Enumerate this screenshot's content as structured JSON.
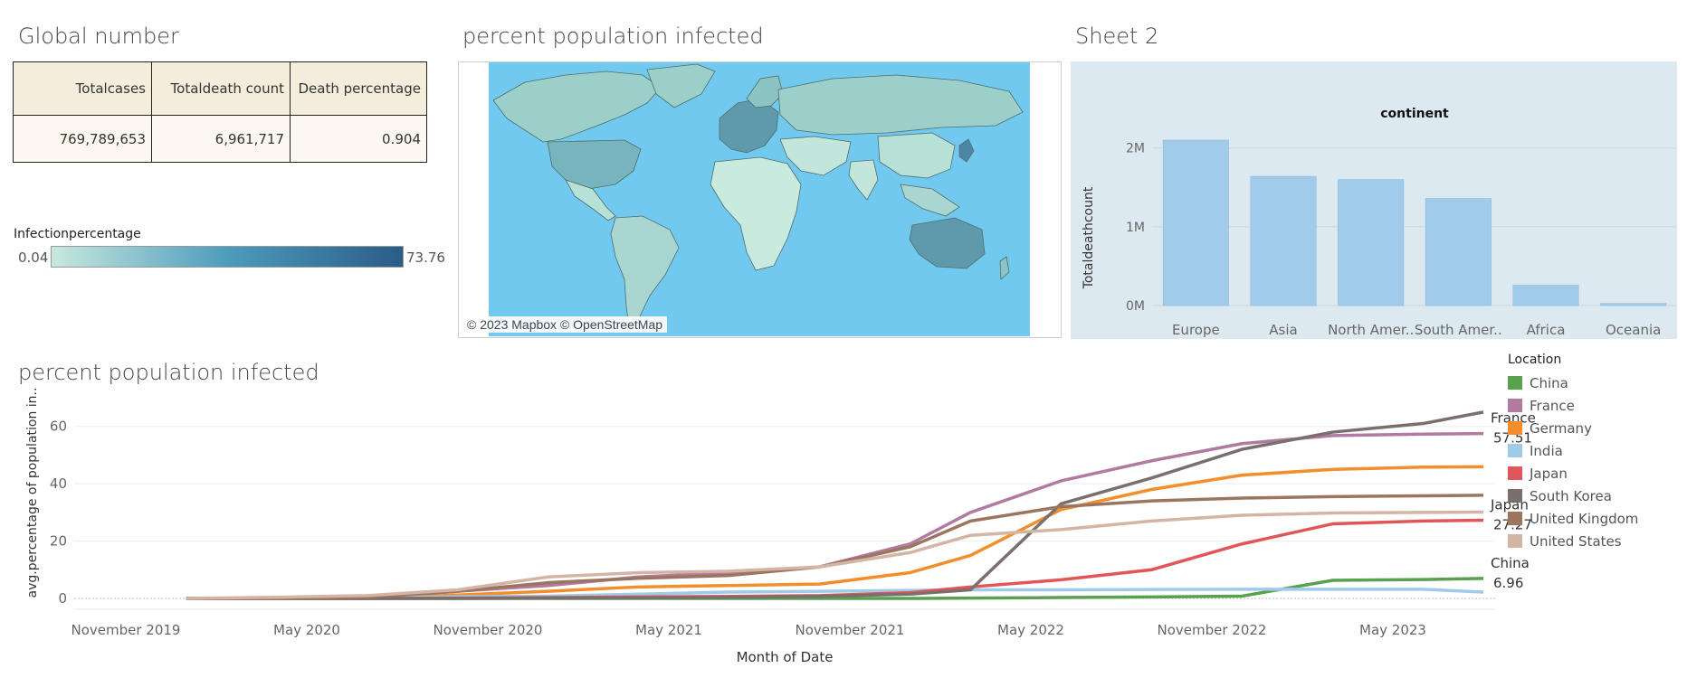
{
  "global_number": {
    "title": "Global number",
    "headers": [
      "Totalcases",
      "Totaldeath count",
      "Death percentage"
    ],
    "values": [
      "769,789,653",
      "6,961,717",
      "0.904"
    ]
  },
  "legend": {
    "title": "Infectionpercentage",
    "min": "0.04",
    "max": "73.76"
  },
  "map": {
    "title": "percent population infected",
    "attribution": "© 2023 Mapbox © OpenStreetMap",
    "ocean_color": "#72c9ef",
    "land_color": "#9ccfc9"
  },
  "sheet2": {
    "title": "Sheet 2"
  },
  "line_panel": {
    "title": "percent population infected"
  },
  "chart_data": [
    {
      "type": "bar",
      "title": "continent",
      "ylabel": "Totaldeathcount",
      "xlabel": "",
      "categories": [
        "Europe",
        "Asia",
        "North Amer..",
        "South Amer..",
        "Africa",
        "Oceania"
      ],
      "values": [
        2100000,
        1640000,
        1600000,
        1360000,
        258000,
        27000
      ],
      "yticks": [
        "0M",
        "1M",
        "2M"
      ],
      "ytick_values": [
        0,
        1000000,
        2000000
      ],
      "ylim": [
        0,
        2180000
      ],
      "bar_color": "#a0cbea",
      "grid": true
    },
    {
      "type": "line",
      "title": "percent population infected",
      "xlabel": "Month of Date",
      "ylabel": "avg.percentage of population in..",
      "x": [
        "2020-01",
        "2020-04",
        "2020-07",
        "2020-10",
        "2021-01",
        "2021-04",
        "2021-07",
        "2021-10",
        "2022-01",
        "2022-03",
        "2022-06",
        "2022-09",
        "2022-12",
        "2023-03",
        "2023-06",
        "2023-08"
      ],
      "xticks": [
        "November 2019",
        "May 2020",
        "November 2020",
        "May 2021",
        "November 2021",
        "May 2022",
        "November 2022",
        "May 2023"
      ],
      "ylim": [
        0,
        70
      ],
      "yticks": [
        0,
        20,
        40,
        60
      ],
      "legend_title": "Location",
      "legend_position": "right",
      "series": [
        {
          "name": "China",
          "color": "#59a14f",
          "values": [
            0,
            0,
            0,
            0,
            0,
            0,
            0,
            0,
            0,
            0.1,
            0.3,
            0.5,
            0.8,
            6.3,
            6.6,
            6.96
          ],
          "end_label": [
            "China",
            "6.96"
          ]
        },
        {
          "name": "France",
          "color": "#b07aa1",
          "values": [
            0,
            0,
            0.3,
            2.5,
            4.5,
            7.5,
            9,
            11,
            19,
            30,
            41,
            48,
            54,
            56.8,
            57.3,
            57.51
          ],
          "end_label": [
            "France",
            "57.51"
          ]
        },
        {
          "name": "Germany",
          "color": "#f28e2b",
          "values": [
            0,
            0,
            0.2,
            1.2,
            2.5,
            4,
            4.5,
            5,
            9,
            15,
            31,
            38,
            43,
            45,
            45.8,
            45.9
          ]
        },
        {
          "name": "India",
          "color": "#a0cbe8",
          "values": [
            0,
            0,
            0.2,
            0.6,
            0.8,
            1.5,
            2.2,
            2.5,
            2.8,
            3,
            3,
            3.1,
            3.2,
            3.2,
            3.2,
            2.2
          ]
        },
        {
          "name": "Japan",
          "color": "#e15759",
          "values": [
            0,
            0,
            0,
            0.1,
            0.3,
            0.5,
            0.7,
            1,
            2,
            4,
            6.5,
            10,
            19,
            26,
            27,
            27.27
          ],
          "end_label": [
            "Japan",
            "27.27"
          ]
        },
        {
          "name": "South Korea",
          "color": "#79706e",
          "values": [
            0,
            0,
            0,
            0,
            0.1,
            0.2,
            0.4,
            0.7,
            1.5,
            3,
            33,
            42,
            52,
            58,
            61,
            65
          ]
        },
        {
          "name": "United Kingdom",
          "color": "#9c755f",
          "values": [
            0,
            0,
            0.4,
            2.5,
            5.5,
            7,
            8,
            11,
            18,
            27,
            32,
            34,
            35,
            35.5,
            35.8,
            36
          ]
        },
        {
          "name": "United States",
          "color": "#d4b4a4",
          "values": [
            0,
            0.4,
            1,
            3,
            7.5,
            9,
            9.5,
            11,
            16,
            22,
            24,
            27,
            29,
            29.8,
            30,
            30.1
          ]
        }
      ]
    }
  ]
}
